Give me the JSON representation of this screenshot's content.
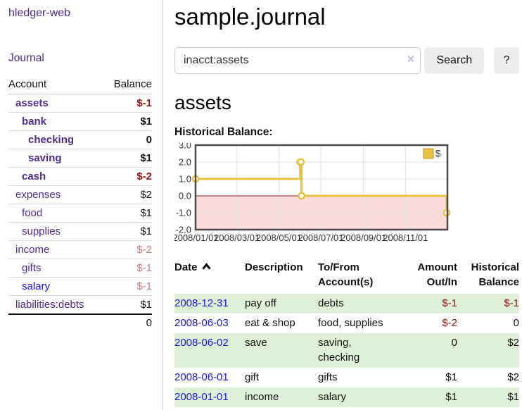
{
  "app": {
    "brand": "hledger-web",
    "nav_journal": "Journal"
  },
  "palette": {
    "link_purple": "#4f2a8f",
    "link_blue": "#1a16e8",
    "negative_strong": "#941616",
    "negative_muted": "#bf7f7f",
    "row_green": "#dff0d8"
  },
  "header": {
    "title": "sample.journal"
  },
  "search": {
    "value": "inacct:assets",
    "clear_icon": "×",
    "search_label": "Search",
    "help_label": "?"
  },
  "sidebar": {
    "accounts_header": {
      "account": "Account",
      "balance": "Balance"
    },
    "accounts": [
      {
        "name": "assets",
        "balance": "$-1",
        "depth": 1,
        "in_acct": true
      },
      {
        "name": "bank",
        "balance": "$1",
        "depth": 2,
        "in_acct": true
      },
      {
        "name": "checking",
        "balance": "0",
        "depth": 3,
        "in_acct": true
      },
      {
        "name": "saving",
        "balance": "$1",
        "depth": 3,
        "in_acct": true
      },
      {
        "name": "cash",
        "balance": "$-2",
        "depth": 2,
        "in_acct": true
      },
      {
        "name": "expenses",
        "balance": "$2",
        "depth": 1
      },
      {
        "name": "food",
        "balance": "$1",
        "depth": 2
      },
      {
        "name": "supplies",
        "balance": "$1",
        "depth": 2
      },
      {
        "name": "income",
        "balance": "$-2",
        "depth": 1
      },
      {
        "name": "gifts",
        "balance": "$-1",
        "depth": 2
      },
      {
        "name": "salary",
        "balance": "$-1",
        "depth": 2,
        "unvisited": true
      },
      {
        "name": "liabilities:debts",
        "balance": "$1",
        "depth": 1
      }
    ],
    "total": "0"
  },
  "register": {
    "heading": "assets",
    "chart_label": "Historical Balance:"
  },
  "chart_data": {
    "type": "line",
    "title": "Historical Balance:",
    "step": true,
    "series": [
      {
        "name": "$",
        "color": "#e8c340",
        "points": [
          [
            "2008/01/01",
            1
          ],
          [
            "2008/06/01",
            2
          ],
          [
            "2008/06/02",
            2
          ],
          [
            "2008/06/03",
            0
          ],
          [
            "2008/12/31",
            -1
          ]
        ]
      }
    ],
    "ylim": [
      -2,
      3
    ],
    "yticks": [
      "3.0",
      "2.0",
      "1.0",
      "0.0",
      "-1.0",
      "-2.0"
    ],
    "xticks": [
      "2008/01/01",
      "2008/03/01",
      "2008/05/01",
      "2008/07/01",
      "2008/09/01",
      "2008/11/01"
    ],
    "xrange": [
      "2008/01/01",
      "2009/01/01"
    ],
    "legend": [
      "$"
    ],
    "legend_position": "top-right",
    "grid": true,
    "negative_region_color": "#fbdada",
    "zero_line_color": "#8b1a1a"
  },
  "table": {
    "headers": [
      "Date",
      "Description",
      "To/From Account(s)",
      "Amount Out/In",
      "Historical Balance"
    ],
    "sort": {
      "column": "Date",
      "direction": "asc"
    },
    "rows": [
      {
        "date": "2008-12-31",
        "description": "pay off",
        "accounts": "debts",
        "amount": "$-1",
        "balance": "$-1"
      },
      {
        "date": "2008-06-03",
        "description": "eat & shop",
        "accounts": "food, supplies",
        "amount": "$-2",
        "balance": "0"
      },
      {
        "date": "2008-06-02",
        "description": "save",
        "accounts": "saving, checking",
        "amount": "0",
        "balance": "$2"
      },
      {
        "date": "2008-06-01",
        "description": "gift",
        "accounts": "gifts",
        "amount": "$1",
        "balance": "$2"
      },
      {
        "date": "2008-01-01",
        "description": "income",
        "accounts": "salary",
        "amount": "$1",
        "balance": "$1"
      }
    ]
  }
}
